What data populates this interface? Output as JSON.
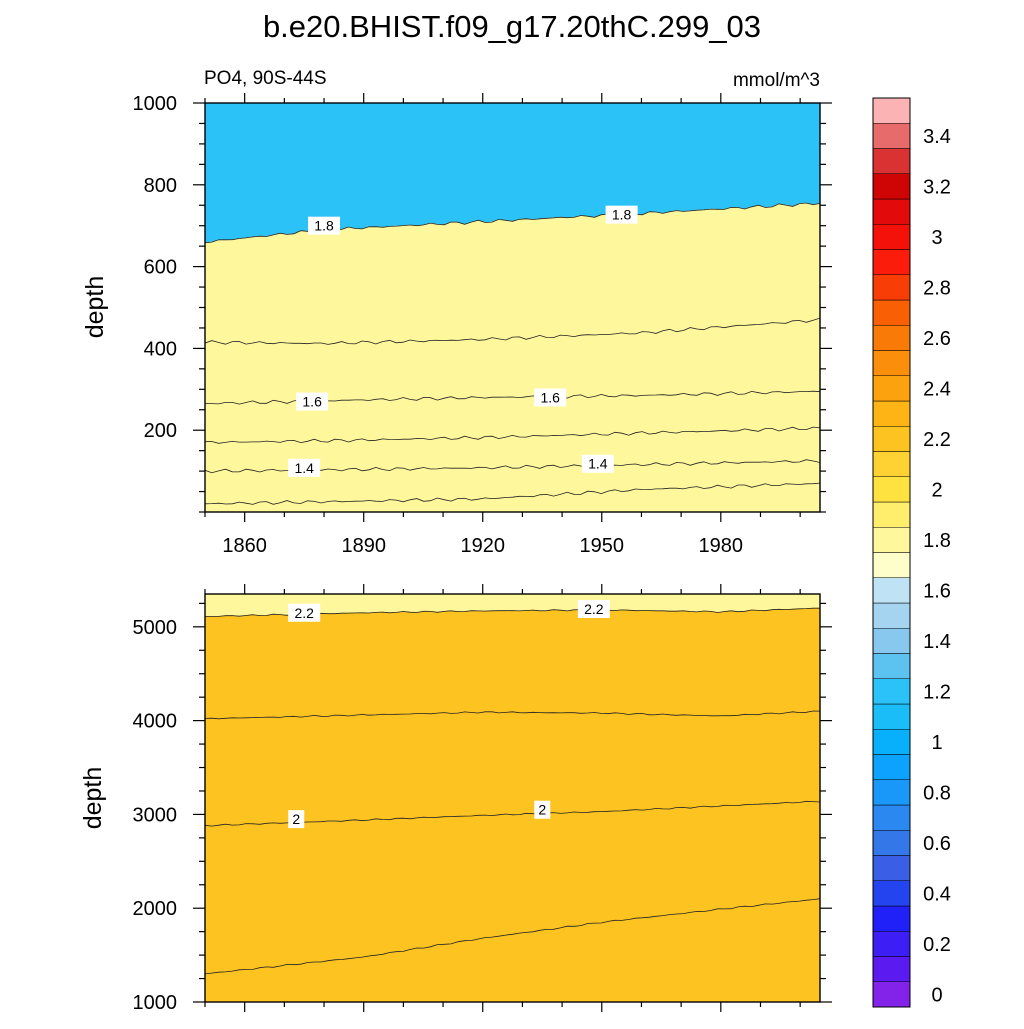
{
  "chart_data": [
    {
      "type": "contour",
      "title": "b.e20.BHIST.f09_g17.20thC.299_03",
      "left_string": "PO4, 90S-44S",
      "right_string": "mmol/m^3",
      "ylabel": "depth",
      "xlim": [
        1850,
        2005
      ],
      "ylim": [
        1000,
        0
      ],
      "x_ticks": [
        1860,
        1890,
        1920,
        1950,
        1980
      ],
      "x_tick_labels": [
        "1860",
        "1890",
        "1920",
        "1950",
        "1980"
      ],
      "y_ticks": [
        200,
        400,
        600,
        800,
        1000
      ],
      "y_tick_labels": [
        "200",
        "400",
        "600",
        "800",
        "1000"
      ],
      "band_colors": [
        "#2bc2f8",
        "#5cc3f1",
        "#88c8ee",
        "#a4d4f0",
        "#bfe3f4",
        "#fefecb",
        "#fff79c"
      ],
      "contours": [
        {
          "level": 1.3,
          "label": "",
          "x": [
            1850,
            1880,
            1920,
            1960,
            2005
          ],
          "y": [
            20,
            25,
            32,
            55,
            70
          ]
        },
        {
          "level": 1.4,
          "label": "1.4",
          "x": [
            1850,
            1880,
            1920,
            1960,
            2005
          ],
          "y": [
            100,
            103,
            108,
            116,
            125
          ]
        },
        {
          "level": 1.5,
          "label": "",
          "x": [
            1850,
            1880,
            1920,
            1960,
            2005
          ],
          "y": [
            170,
            174,
            182,
            193,
            205
          ]
        },
        {
          "level": 1.6,
          "label": "1.6",
          "x": [
            1850,
            1880,
            1920,
            1960,
            2005
          ],
          "y": [
            265,
            272,
            280,
            285,
            295
          ]
        },
        {
          "level": 1.7,
          "label": "",
          "x": [
            1850,
            1880,
            1920,
            1960,
            2005
          ],
          "y": [
            415,
            412,
            422,
            438,
            470
          ]
        },
        {
          "level": 1.8,
          "label": "1.8",
          "x": [
            1850,
            1880,
            1920,
            1960,
            2005
          ],
          "y": [
            660,
            690,
            710,
            730,
            755
          ]
        }
      ],
      "contour_labels": [
        {
          "text": "1.4",
          "x": 1875,
          "y": 108
        },
        {
          "text": "1.4",
          "x": 1949,
          "y": 118
        },
        {
          "text": "1.6",
          "x": 1877,
          "y": 270
        },
        {
          "text": "1.6",
          "x": 1937,
          "y": 280
        },
        {
          "text": "1.8",
          "x": 1880,
          "y": 700
        },
        {
          "text": "1.8",
          "x": 1955,
          "y": 727
        }
      ]
    },
    {
      "type": "contour",
      "ylabel": "depth",
      "xlim": [
        1850,
        2005
      ],
      "ylim": [
        5350,
        1000
      ],
      "y_ticks": [
        1000,
        2000,
        3000,
        4000,
        5000
      ],
      "y_tick_labels": [
        "1000",
        "2000",
        "3000",
        "4000",
        "5000"
      ],
      "band_colors": [
        "#fff79c",
        "#feee6b",
        "#fee23f",
        "#fdd232",
        "#fdc321"
      ],
      "contours": [
        {
          "level": 1.9,
          "label": "",
          "x": [
            1850,
            1890,
            1920,
            1950,
            1980,
            2005
          ],
          "y": [
            1300,
            1480,
            1680,
            1850,
            1990,
            2100
          ]
        },
        {
          "level": 2.0,
          "label": "2",
          "x": [
            1850,
            1890,
            1920,
            1950,
            1980,
            2005
          ],
          "y": [
            2880,
            2940,
            2990,
            3030,
            3090,
            3140
          ]
        },
        {
          "level": 2.1,
          "label": "",
          "x": [
            1850,
            1890,
            1920,
            1950,
            1980,
            2005
          ],
          "y": [
            4020,
            4060,
            4090,
            4080,
            4050,
            4100
          ]
        },
        {
          "level": 2.2,
          "label": "2.2",
          "x": [
            1850,
            1890,
            1920,
            1950,
            1980,
            2005
          ],
          "y": [
            5110,
            5150,
            5170,
            5180,
            5160,
            5200
          ]
        }
      ],
      "contour_labels": [
        {
          "text": "2",
          "x": 1873,
          "y": 2950
        },
        {
          "text": "2",
          "x": 1935,
          "y": 3050
        },
        {
          "text": "2.2",
          "x": 1875,
          "y": 5150
        },
        {
          "text": "2.2",
          "x": 1948,
          "y": 5190
        }
      ]
    }
  ],
  "colorbar": {
    "levels": [
      0,
      0.2,
      0.4,
      0.6,
      0.8,
      1,
      1.2,
      1.4,
      1.6,
      1.8,
      2,
      2.2,
      2.4,
      2.6,
      2.8,
      3,
      3.2,
      3.4
    ],
    "labels": [
      "0",
      "0.2",
      "0.4",
      "0.6",
      "0.8",
      "1",
      "1.2",
      "1.4",
      "1.6",
      "1.8",
      "2",
      "2.2",
      "2.4",
      "2.6",
      "2.8",
      "3",
      "3.2",
      "3.4"
    ],
    "colors": [
      "#8322e8",
      "#5b1bf0",
      "#3d1ff5",
      "#2020f8",
      "#2444f0",
      "#3a5ee6",
      "#3377e9",
      "#2a88f0",
      "#1a98fa",
      "#0ca2fd",
      "#08b0fc",
      "#1bbdf8",
      "#2bc2f8",
      "#5cc3f1",
      "#88c8ee",
      "#a4d4f0",
      "#bfe3f4",
      "#fefecb",
      "#fff79c",
      "#feee6b",
      "#fee23f",
      "#fdd232",
      "#fdc321",
      "#fdb414",
      "#fca20f",
      "#fb8f0b",
      "#f97a06",
      "#f95f05",
      "#f93d07",
      "#fc1c0b",
      "#f4110a",
      "#e20a0a",
      "#cf0505",
      "#da3232",
      "#e86b6b",
      "#fbb3b3"
    ]
  }
}
